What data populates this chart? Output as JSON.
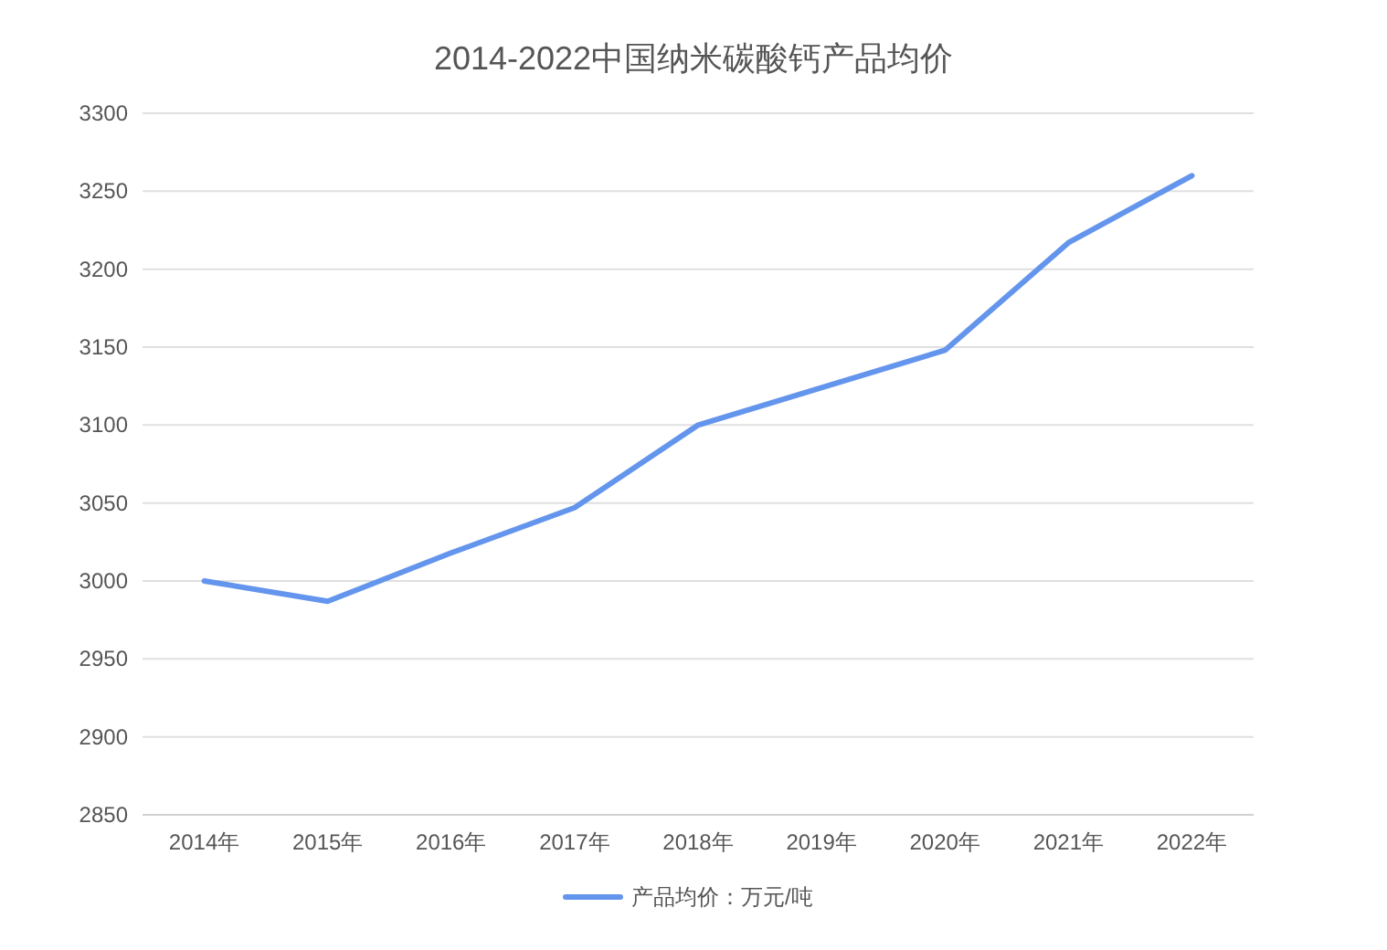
{
  "chart_data": {
    "type": "line",
    "title": "2014-2022中国纳米碳酸钙产品均价",
    "categories": [
      "2014年",
      "2015年",
      "2016年",
      "2017年",
      "2018年",
      "2019年",
      "2020年",
      "2021年",
      "2022年"
    ],
    "series": [
      {
        "name": "产品均价：万元/吨",
        "color": "#6495ed",
        "values": [
          3000,
          2987,
          3018,
          3047,
          3100,
          3124,
          3148,
          3217,
          3260
        ]
      }
    ],
    "ylim": [
      2850,
      3300
    ],
    "yticks": [
      2850,
      2900,
      2950,
      3000,
      3050,
      3100,
      3150,
      3200,
      3250,
      3300
    ],
    "grid": "y",
    "legend": "bottom",
    "marker": "none",
    "line_style": "solid"
  }
}
